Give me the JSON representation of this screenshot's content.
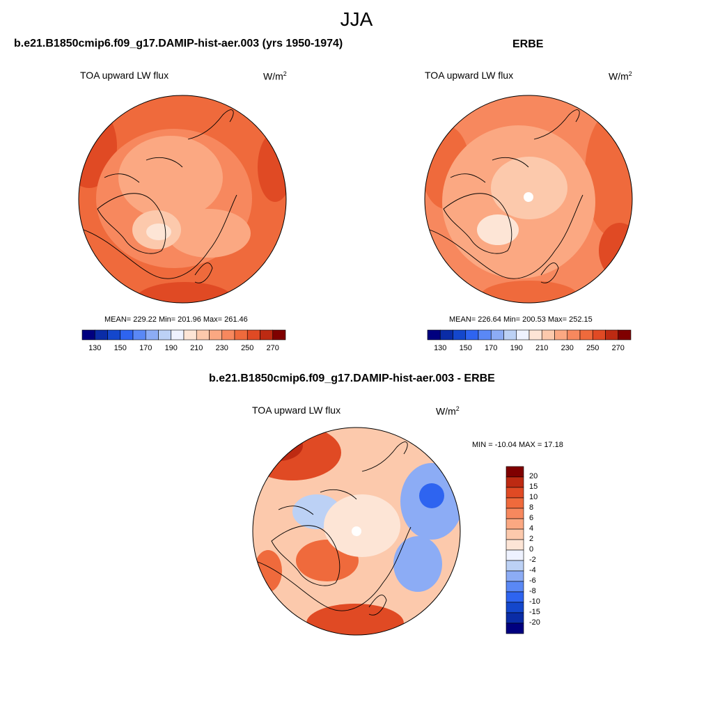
{
  "title": "JJA",
  "panels": [
    {
      "id": "model",
      "title": "b.e21.B1850cmip6.f09_g17.DAMIP-hist-aer.003 (yrs 1950-1974)",
      "subtitle": "TOA upward LW flux",
      "units_base": "W/m",
      "units_exp": "2",
      "stats": "MEAN= 229.22  Min= 201.96  Max= 261.46",
      "pole_hole": false
    },
    {
      "id": "erbe",
      "title": "ERBE",
      "subtitle": "TOA upward LW flux",
      "units_base": "W/m",
      "units_exp": "2",
      "stats": "MEAN= 226.64  Min= 200.53  Max= 252.15",
      "pole_hole": true
    },
    {
      "id": "diff",
      "title": "b.e21.B1850cmip6.f09_g17.DAMIP-hist-aer.003 - ERBE",
      "subtitle": "TOA upward LW flux",
      "units_base": "W/m",
      "units_exp": "2",
      "stats": "MIN = -10.04 MAX =  17.18",
      "pole_hole": true
    }
  ],
  "abs_colorbar": {
    "colors": [
      "#00007f",
      "#0a2ca6",
      "#1447cc",
      "#2e64f0",
      "#5a88f5",
      "#8cacf5",
      "#bcd1f5",
      "#eef2ff",
      "#fde5d6",
      "#fcc9ac",
      "#fba882",
      "#f7885e",
      "#ef6a3c",
      "#e04a24",
      "#bd2a12",
      "#7f0000"
    ],
    "labels": [
      "130",
      "150",
      "170",
      "190",
      "210",
      "230",
      "250",
      "270"
    ]
  },
  "diff_colorbar": {
    "colors": [
      "#00007f",
      "#0a2ca6",
      "#1447cc",
      "#2e64f0",
      "#5a88f5",
      "#8cacf5",
      "#bcd1f5",
      "#eef2ff",
      "#fde5d6",
      "#fcc9ac",
      "#fba882",
      "#f7885e",
      "#ef6a3c",
      "#e04a24",
      "#bd2a12",
      "#7f0000"
    ],
    "labels": [
      "20",
      "15",
      "10",
      "8",
      "6",
      "4",
      "2",
      "0",
      "-2",
      "-4",
      "-6",
      "-8",
      "-10",
      "-15",
      "-20"
    ]
  }
}
